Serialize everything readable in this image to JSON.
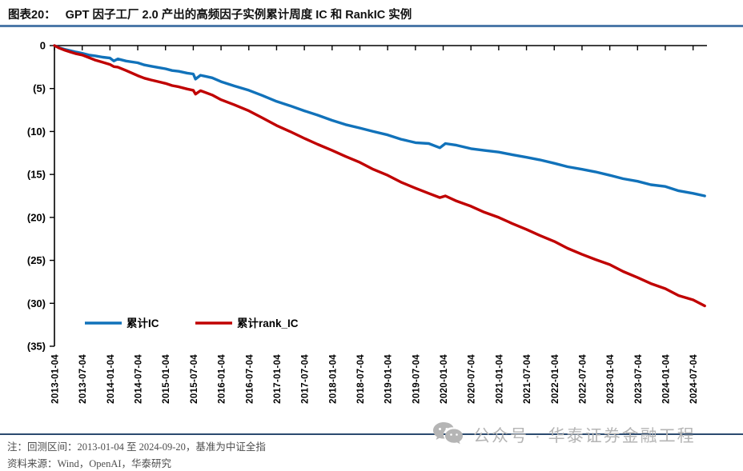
{
  "figure": {
    "label": "图表20：",
    "title": "GPT 因子工厂 2.0 产出的高频因子实例累计周度 IC 和 RankIC 实例"
  },
  "colors": {
    "ic_line": "#1172ba",
    "rank_ic_line": "#c00000",
    "title_rule": "#4d79a9",
    "footer_rule": "#2b4a6f",
    "axis": "#000000",
    "watermark_gray": "#b5b5b5"
  },
  "footer": {
    "note": "注：回测区间：2013-01-04 至 2024-09-20，基准为中证全指",
    "source": "资料来源：Wind，OpenAI，华泰研究"
  },
  "watermark": {
    "icon": "wechat-icon",
    "text": "公众号 · 华泰证券金融工程"
  },
  "chart_data": {
    "type": "line",
    "title": "",
    "xlabel": "",
    "ylabel": "",
    "grid": false,
    "legend_position": "inside-bottom-left",
    "xlim": [
      2013.01,
      2024.76
    ],
    "ylim": [
      -35,
      0
    ],
    "x_tick_labels": [
      "2013-01-04",
      "2013-07-04",
      "2014-01-04",
      "2014-07-04",
      "2015-01-04",
      "2015-07-04",
      "2016-01-04",
      "2016-07-04",
      "2017-01-04",
      "2017-07-04",
      "2018-01-04",
      "2018-07-04",
      "2019-01-04",
      "2019-07-04",
      "2020-01-04",
      "2020-07-04",
      "2021-01-04",
      "2021-07-04",
      "2022-01-04",
      "2022-07-04",
      "2023-01-04",
      "2023-07-04",
      "2024-01-04",
      "2024-07-04"
    ],
    "x_tick_years": [
      2013.01,
      2013.51,
      2014.01,
      2014.51,
      2015.01,
      2015.51,
      2016.01,
      2016.51,
      2017.01,
      2017.51,
      2018.01,
      2018.51,
      2019.01,
      2019.51,
      2020.01,
      2020.51,
      2021.01,
      2021.51,
      2022.01,
      2022.51,
      2023.01,
      2023.51,
      2024.01,
      2024.51
    ],
    "y_tick_labels": [
      "0",
      "(5)",
      "(10)",
      "(15)",
      "(20)",
      "(25)",
      "(30)",
      "(35)"
    ],
    "y_tick_values": [
      0,
      -5,
      -10,
      -15,
      -20,
      -25,
      -30,
      -35
    ],
    "x": [
      2013.01,
      2013.1,
      2013.2,
      2013.3,
      2013.4,
      2013.51,
      2013.63,
      2013.75,
      2013.88,
      2014.01,
      2014.08,
      2014.15,
      2014.3,
      2014.51,
      2014.63,
      2014.75,
      2014.88,
      2015.01,
      2015.13,
      2015.25,
      2015.4,
      2015.51,
      2015.55,
      2015.64,
      2015.85,
      2016.01,
      2016.25,
      2016.51,
      2016.75,
      2017.01,
      2017.25,
      2017.51,
      2017.75,
      2018.01,
      2018.25,
      2018.51,
      2018.75,
      2019.01,
      2019.25,
      2019.51,
      2019.75,
      2019.95,
      2020.05,
      2020.25,
      2020.51,
      2020.75,
      2021.01,
      2021.25,
      2021.51,
      2021.75,
      2022.01,
      2022.25,
      2022.51,
      2022.75,
      2023.01,
      2023.25,
      2023.51,
      2023.75,
      2024.01,
      2024.25,
      2024.51,
      2024.72
    ],
    "series": [
      {
        "name": "累计IC",
        "color": "#1172ba",
        "values": [
          0,
          -0.25,
          -0.45,
          -0.6,
          -0.75,
          -0.9,
          -1.1,
          -1.2,
          -1.35,
          -1.45,
          -1.8,
          -1.55,
          -1.8,
          -2.0,
          -2.25,
          -2.4,
          -2.55,
          -2.7,
          -2.9,
          -3.0,
          -3.2,
          -3.3,
          -3.9,
          -3.45,
          -3.75,
          -4.2,
          -4.7,
          -5.2,
          -5.8,
          -6.5,
          -7.0,
          -7.6,
          -8.1,
          -8.7,
          -9.2,
          -9.6,
          -10.0,
          -10.4,
          -10.9,
          -11.3,
          -11.4,
          -11.9,
          -11.4,
          -11.6,
          -12.0,
          -12.2,
          -12.4,
          -12.7,
          -13.0,
          -13.3,
          -13.7,
          -14.1,
          -14.4,
          -14.7,
          -15.1,
          -15.5,
          -15.8,
          -16.2,
          -16.4,
          -16.9,
          -17.2,
          -17.5
        ]
      },
      {
        "name": "累计rank_IC",
        "color": "#c00000",
        "values": [
          0,
          -0.3,
          -0.55,
          -0.75,
          -0.95,
          -1.1,
          -1.4,
          -1.7,
          -1.95,
          -2.2,
          -2.45,
          -2.5,
          -2.9,
          -3.5,
          -3.8,
          -4.0,
          -4.2,
          -4.4,
          -4.65,
          -4.8,
          -5.05,
          -5.2,
          -5.65,
          -5.25,
          -5.75,
          -6.3,
          -6.9,
          -7.6,
          -8.4,
          -9.3,
          -10.0,
          -10.8,
          -11.5,
          -12.2,
          -12.9,
          -13.6,
          -14.4,
          -15.1,
          -15.9,
          -16.6,
          -17.2,
          -17.7,
          -17.5,
          -18.1,
          -18.7,
          -19.4,
          -20.0,
          -20.7,
          -21.4,
          -22.1,
          -22.8,
          -23.6,
          -24.3,
          -24.9,
          -25.5,
          -26.3,
          -27.0,
          -27.7,
          -28.3,
          -29.1,
          -29.6,
          -30.3
        ]
      }
    ],
    "legend": [
      "累计IC",
      "累计rank_IC"
    ]
  }
}
